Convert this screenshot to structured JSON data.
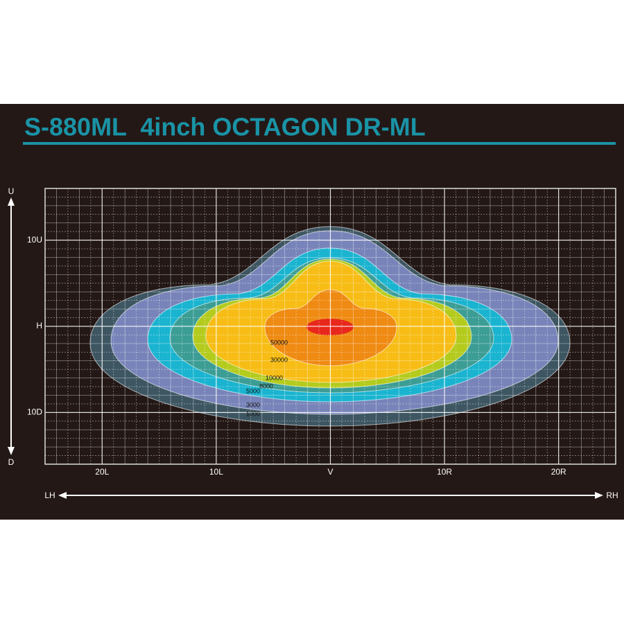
{
  "chart_data": {
    "type": "contour",
    "title": "S-880ML  4inch OCTAGON DR-ML",
    "xlim": [
      -25,
      25
    ],
    "ylim": [
      -16,
      16
    ],
    "xticks": [
      {
        "value": -20,
        "label": "20L"
      },
      {
        "value": -10,
        "label": "10L"
      },
      {
        "value": 0,
        "label": "V"
      },
      {
        "value": 10,
        "label": "10R"
      },
      {
        "value": 20,
        "label": "20R"
      }
    ],
    "yticks": [
      {
        "value": 10,
        "label": "10U"
      },
      {
        "value": 0,
        "label": "H"
      },
      {
        "value": -10,
        "label": "10D"
      }
    ],
    "y_label_top": "U",
    "y_label_bottom": "D",
    "x_label_left": "LH",
    "x_label_right": "RH",
    "levels": [
      1000,
      3000,
      5000,
      8000,
      10000,
      30000,
      50000
    ],
    "level_colors": [
      "#3d5662",
      "#7884b9",
      "#1ab4d0",
      "#3c9d95",
      "#b4cb1d",
      "#f7bd16",
      "#ef8a12"
    ],
    "grid": true
  }
}
